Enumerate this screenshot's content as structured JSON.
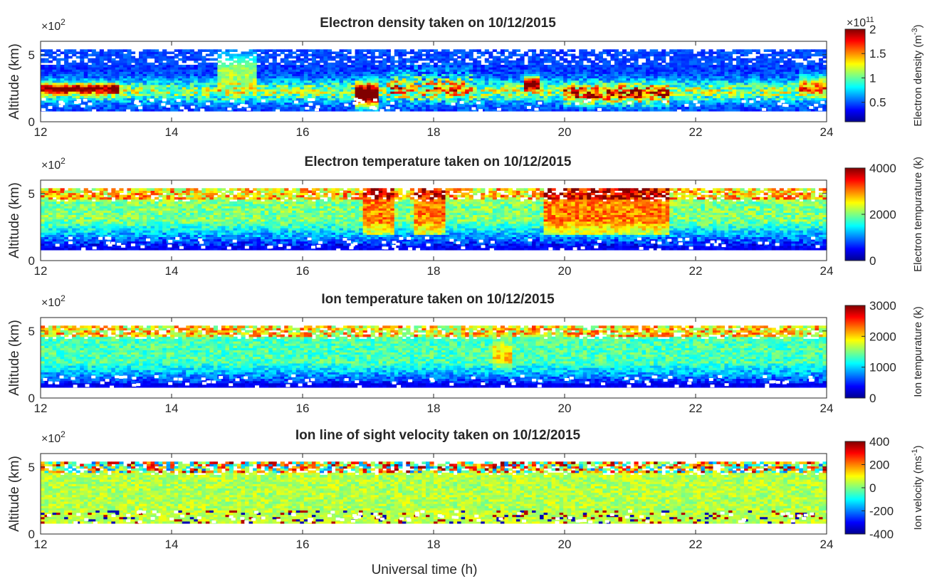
{
  "figure": {
    "xlabel": "Universal time (h)",
    "x_ticks": [
      "12",
      "14",
      "16",
      "18",
      "20",
      "22",
      "24"
    ],
    "colormap": "jet",
    "background": "#ffffff"
  },
  "chart_data": [
    {
      "type": "heatmap",
      "title": "Electron density taken on 10/12/2015",
      "xlabel": "",
      "ylabel": "Altitude (km)",
      "xlim": [
        12,
        24
      ],
      "ylim": [
        0,
        6
      ],
      "y_ticks": [
        "0",
        "5"
      ],
      "y_exponent": "×10^2",
      "colorbar": {
        "label": "Electron density (m^-3)",
        "range": [
          0.1,
          2
        ],
        "ticks": [
          "0.5",
          "1",
          "1.5",
          "2"
        ],
        "exponent": "×10^11"
      },
      "data_altitude_range_km": [
        80,
        540
      ],
      "features": [
        {
          "x": [
            12.2,
            12.9
          ],
          "y": [
            2.2,
            2.8
          ],
          "level": "high (≈2e11)"
        },
        {
          "x": [
            16.8,
            17.1
          ],
          "y": [
            1.2,
            3.0
          ],
          "level": "high"
        },
        {
          "x": [
            19.4,
            19.6
          ],
          "y": [
            2.4,
            3.4
          ],
          "level": "high"
        }
      ]
    },
    {
      "type": "heatmap",
      "title": "Electron  temperature taken on 10/12/2015",
      "xlabel": "",
      "ylabel": "Altitude (km)",
      "xlim": [
        12,
        24
      ],
      "ylim": [
        0,
        6
      ],
      "y_ticks": [
        "0",
        "5"
      ],
      "y_exponent": "×10^2",
      "colorbar": {
        "label": "Electron tempurature (k)",
        "range": [
          0,
          4000
        ],
        "ticks": [
          "0",
          "2000",
          "4000"
        ]
      },
      "data_altitude_range_km": [
        80,
        540
      ]
    },
    {
      "type": "heatmap",
      "title": "Ion temperature taken on 10/12/2015",
      "xlabel": "",
      "ylabel": "Altitude (km)",
      "xlim": [
        12,
        24
      ],
      "ylim": [
        0,
        6
      ],
      "y_ticks": [
        "0",
        "5"
      ],
      "y_exponent": "×10^2",
      "colorbar": {
        "label": "Ion tempurature (k)",
        "range": [
          0,
          3000
        ],
        "ticks": [
          "0",
          "1000",
          "2000",
          "3000"
        ]
      },
      "data_altitude_range_km": [
        80,
        540
      ]
    },
    {
      "type": "heatmap",
      "title": "Ion line of sight velocity taken on 10/12/2015",
      "xlabel": "Universal time (h)",
      "ylabel": "Altitude (km)",
      "xlim": [
        12,
        24
      ],
      "ylim": [
        0,
        6
      ],
      "y_ticks": [
        "0",
        "5"
      ],
      "y_exponent": "×10^2",
      "colorbar": {
        "label": "Ion velocity (ms^-1)",
        "range": [
          -400,
          400
        ],
        "ticks": [
          "-400",
          "-200",
          "0",
          "200",
          "400"
        ]
      },
      "data_altitude_range_km": [
        80,
        540
      ]
    }
  ]
}
